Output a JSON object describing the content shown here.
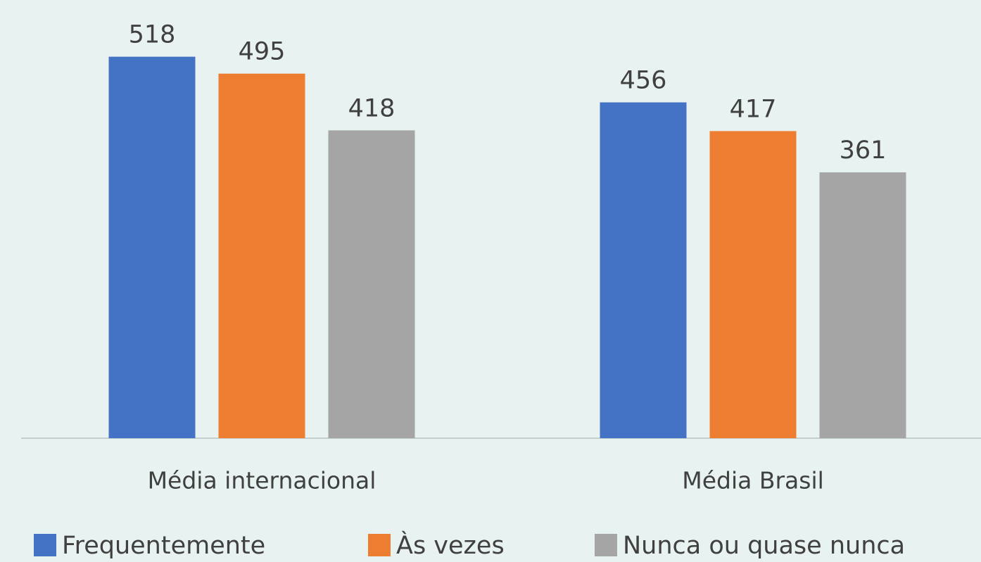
{
  "chart_data": {
    "type": "bar",
    "categories": [
      "Média internacional",
      "Média Brasil"
    ],
    "series": [
      {
        "name": "Frequentemente",
        "color": "#4472c4",
        "values": [
          518,
          456
        ]
      },
      {
        "name": "Às vezes",
        "color": "#ed7d31",
        "values": [
          495,
          417
        ]
      },
      {
        "name": "Nunca ou quase nunca",
        "color": "#a5a5a5",
        "values": [
          418,
          361
        ]
      }
    ],
    "ylim": [
      0,
      595
    ]
  }
}
